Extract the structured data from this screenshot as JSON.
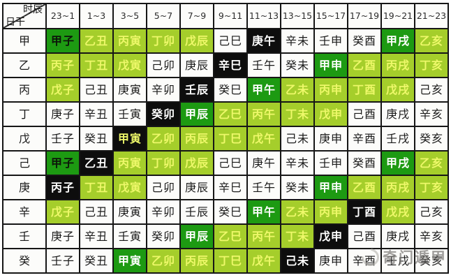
{
  "chart_data": {
    "type": "table",
    "title": "",
    "corner": {
      "top": "时辰",
      "bottom": "日干"
    },
    "time_columns": [
      "23~1",
      "1~3",
      "3~5",
      "5~7",
      "7~9",
      "9~11",
      "11~13",
      "13~15",
      "15~17",
      "17~19",
      "19~21",
      "21~23"
    ],
    "rows": [
      {
        "stem": "甲",
        "cells": [
          {
            "text": "甲子",
            "style": "GK"
          },
          {
            "text": "乙丑",
            "style": "L"
          },
          {
            "text": "丙寅",
            "style": "L"
          },
          {
            "text": "丁卯",
            "style": "L"
          },
          {
            "text": "戊辰",
            "style": "L"
          },
          {
            "text": "己巳",
            "style": "W"
          },
          {
            "text": "庚午",
            "style": "K"
          },
          {
            "text": "辛未",
            "style": "W"
          },
          {
            "text": "壬申",
            "style": "W"
          },
          {
            "text": "癸酉",
            "style": "W"
          },
          {
            "text": "甲戌",
            "style": "G"
          },
          {
            "text": "乙亥",
            "style": "L"
          }
        ]
      },
      {
        "stem": "乙",
        "cells": [
          {
            "text": "丙子",
            "style": "L"
          },
          {
            "text": "丁丑",
            "style": "L"
          },
          {
            "text": "戊寅",
            "style": "L"
          },
          {
            "text": "己卯",
            "style": "W"
          },
          {
            "text": "庚辰",
            "style": "W"
          },
          {
            "text": "辛巳",
            "style": "K"
          },
          {
            "text": "壬午",
            "style": "W"
          },
          {
            "text": "癸未",
            "style": "W"
          },
          {
            "text": "甲申",
            "style": "G"
          },
          {
            "text": "乙酉",
            "style": "L"
          },
          {
            "text": "丙戌",
            "style": "L"
          },
          {
            "text": "丁亥",
            "style": "L"
          }
        ]
      },
      {
        "stem": "丙",
        "cells": [
          {
            "text": "戊子",
            "style": "L"
          },
          {
            "text": "己丑",
            "style": "W"
          },
          {
            "text": "庚寅",
            "style": "W"
          },
          {
            "text": "辛卯",
            "style": "W"
          },
          {
            "text": "壬辰",
            "style": "K"
          },
          {
            "text": "癸巳",
            "style": "W"
          },
          {
            "text": "甲午",
            "style": "G"
          },
          {
            "text": "乙未",
            "style": "L"
          },
          {
            "text": "丙申",
            "style": "L"
          },
          {
            "text": "丁酉",
            "style": "L"
          },
          {
            "text": "戊戌",
            "style": "L"
          },
          {
            "text": "己亥",
            "style": "W"
          }
        ]
      },
      {
        "stem": "丁",
        "cells": [
          {
            "text": "庚子",
            "style": "W"
          },
          {
            "text": "辛丑",
            "style": "W"
          },
          {
            "text": "壬寅",
            "style": "W"
          },
          {
            "text": "癸卯",
            "style": "K"
          },
          {
            "text": "甲辰",
            "style": "G"
          },
          {
            "text": "乙巳",
            "style": "L"
          },
          {
            "text": "丙午",
            "style": "L"
          },
          {
            "text": "丁未",
            "style": "L"
          },
          {
            "text": "戊申",
            "style": "L"
          },
          {
            "text": "己酉",
            "style": "W"
          },
          {
            "text": "庚戌",
            "style": "W"
          },
          {
            "text": "辛亥",
            "style": "W"
          }
        ]
      },
      {
        "stem": "戊",
        "cells": [
          {
            "text": "壬子",
            "style": "W"
          },
          {
            "text": "癸丑",
            "style": "W"
          },
          {
            "text": "甲寅",
            "style": "KY"
          },
          {
            "text": "乙卯",
            "style": "L"
          },
          {
            "text": "丙辰",
            "style": "L"
          },
          {
            "text": "丁巳",
            "style": "L"
          },
          {
            "text": "戊午",
            "style": "L"
          },
          {
            "text": "己未",
            "style": "W"
          },
          {
            "text": "庚申",
            "style": "W"
          },
          {
            "text": "辛酉",
            "style": "W"
          },
          {
            "text": "壬戌",
            "style": "W"
          },
          {
            "text": "癸亥",
            "style": "W"
          }
        ]
      },
      {
        "stem": "己",
        "cells": [
          {
            "text": "甲子",
            "style": "GK"
          },
          {
            "text": "乙丑",
            "style": "K"
          },
          {
            "text": "丙寅",
            "style": "L"
          },
          {
            "text": "丁卯",
            "style": "L"
          },
          {
            "text": "戊辰",
            "style": "L"
          },
          {
            "text": "己巳",
            "style": "W"
          },
          {
            "text": "庚午",
            "style": "W"
          },
          {
            "text": "辛未",
            "style": "W"
          },
          {
            "text": "壬申",
            "style": "W"
          },
          {
            "text": "癸酉",
            "style": "W"
          },
          {
            "text": "甲戌",
            "style": "G"
          },
          {
            "text": "乙亥",
            "style": "L"
          }
        ]
      },
      {
        "stem": "庚",
        "cells": [
          {
            "text": "丙子",
            "style": "K"
          },
          {
            "text": "丁丑",
            "style": "L"
          },
          {
            "text": "戊寅",
            "style": "L"
          },
          {
            "text": "己卯",
            "style": "W"
          },
          {
            "text": "庚辰",
            "style": "W"
          },
          {
            "text": "辛巳",
            "style": "W"
          },
          {
            "text": "壬午",
            "style": "W"
          },
          {
            "text": "癸未",
            "style": "W"
          },
          {
            "text": "甲申",
            "style": "G"
          },
          {
            "text": "乙酉",
            "style": "L"
          },
          {
            "text": "丙戌",
            "style": "L"
          },
          {
            "text": "丁亥",
            "style": "L"
          }
        ]
      },
      {
        "stem": "辛",
        "cells": [
          {
            "text": "戊子",
            "style": "L"
          },
          {
            "text": "己丑",
            "style": "W"
          },
          {
            "text": "庚寅",
            "style": "W"
          },
          {
            "text": "辛卯",
            "style": "W"
          },
          {
            "text": "壬辰",
            "style": "W"
          },
          {
            "text": "癸巳",
            "style": "W"
          },
          {
            "text": "甲午",
            "style": "G"
          },
          {
            "text": "乙未",
            "style": "L"
          },
          {
            "text": "丙申",
            "style": "L"
          },
          {
            "text": "丁酉",
            "style": "K"
          },
          {
            "text": "戊戌",
            "style": "L"
          },
          {
            "text": "己亥",
            "style": "W"
          }
        ]
      },
      {
        "stem": "壬",
        "cells": [
          {
            "text": "庚子",
            "style": "W"
          },
          {
            "text": "辛丑",
            "style": "W"
          },
          {
            "text": "壬寅",
            "style": "W"
          },
          {
            "text": "癸卯",
            "style": "W"
          },
          {
            "text": "甲辰",
            "style": "G"
          },
          {
            "text": "乙巳",
            "style": "L"
          },
          {
            "text": "丙午",
            "style": "L"
          },
          {
            "text": "丁未",
            "style": "L"
          },
          {
            "text": "戊申",
            "style": "K"
          },
          {
            "text": "己酉",
            "style": "W"
          },
          {
            "text": "庚戌",
            "style": "W"
          },
          {
            "text": "辛亥",
            "style": "W"
          }
        ]
      },
      {
        "stem": "癸",
        "cells": [
          {
            "text": "壬子",
            "style": "W"
          },
          {
            "text": "癸丑",
            "style": "W"
          },
          {
            "text": "甲寅",
            "style": "G"
          },
          {
            "text": "乙卯",
            "style": "L"
          },
          {
            "text": "丙辰",
            "style": "L"
          },
          {
            "text": "丁巳",
            "style": "L"
          },
          {
            "text": "戊午",
            "style": "L"
          },
          {
            "text": "己未",
            "style": "K"
          },
          {
            "text": "庚申",
            "style": "W"
          },
          {
            "text": "辛酉",
            "style": "W"
          },
          {
            "text": "壬戌",
            "style": "W"
          },
          {
            "text": "癸亥",
            "style": "W"
          }
        ]
      }
    ],
    "style_legend": {
      "W": {
        "bg": "#fcfcfa",
        "fg": "#1a1a1a",
        "bold": false,
        "meaning": "white-cell"
      },
      "G": {
        "bg": "#1d9a12",
        "fg": "#ffffff",
        "bold": true,
        "meaning": "dark-green-cell-white-text"
      },
      "GK": {
        "bg": "#1d9a12",
        "fg": "#0d150a",
        "bold": true,
        "meaning": "dark-green-cell-black-text"
      },
      "L": {
        "bg": "#a5ce2b",
        "fg": "#eef86a",
        "bold": true,
        "meaning": "light-green-cell-yellow-text"
      },
      "K": {
        "bg": "#0d0d0d",
        "fg": "#ffffff",
        "bold": true,
        "meaning": "black-cell-white-text"
      },
      "KY": {
        "bg": "#0d0d0d",
        "fg": "#eef86a",
        "bold": true,
        "meaning": "black-cell-yellow-text"
      }
    },
    "grid_line_color": "#161616"
  },
  "watermark": {
    "icon": "swirl-circle-logo",
    "text": "奇门遁甲"
  }
}
